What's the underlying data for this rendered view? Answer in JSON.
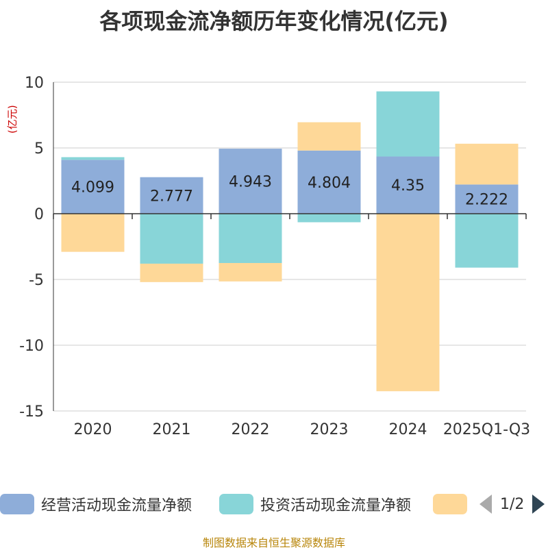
{
  "chart_data": {
    "type": "bar",
    "stacked": true,
    "title": "各项现金流净额历年变化情况(亿元)",
    "ylabel": "(亿元)",
    "ylim": [
      -15,
      10
    ],
    "yticks": [
      10,
      5,
      0,
      -5,
      -10,
      -15
    ],
    "categories": [
      "2020",
      "2021",
      "2022",
      "2023",
      "2024",
      "2025Q1-Q3"
    ],
    "series": [
      {
        "name": "经营活动现金流量净额",
        "color": "#8eadd9",
        "values": [
          4.099,
          2.777,
          4.943,
          4.804,
          4.35,
          2.222
        ],
        "labels": [
          "4.099",
          "2.777",
          "4.943",
          "4.804",
          "4.35",
          "2.222"
        ]
      },
      {
        "name": "投资活动现金流量净额",
        "color": "#88d5d8",
        "values": [
          0.2,
          -3.8,
          -3.75,
          -0.65,
          4.95,
          -4.1
        ]
      },
      {
        "name": "",
        "color": "#fed898",
        "values": [
          -2.9,
          -1.4,
          -1.4,
          2.15,
          -13.5,
          3.1
        ]
      }
    ]
  },
  "legend": {
    "page_text": "1/2"
  },
  "source": "制图数据来自恒生聚源数据库",
  "colors": {
    "grid": "#cccccc",
    "axis": "#333333",
    "title": "#333333",
    "unit": "#cc0000",
    "source": "#b8860b"
  }
}
